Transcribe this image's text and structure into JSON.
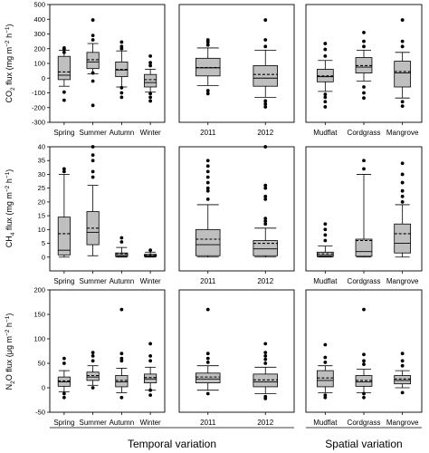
{
  "figure": {
    "row_ylabels": [
      "CO",
      "2",
      " flux (mg m",
      "−2",
      " h",
      "−1",
      ")"
    ],
    "group_labels": {
      "temporal": "Temporal variation",
      "spatial": "Spatial variation"
    }
  },
  "chart_data": [
    {
      "type": "box",
      "id": "co2-season",
      "ylim": [
        -300,
        500
      ],
      "yticks": [
        -300,
        -200,
        -100,
        0,
        100,
        200,
        300,
        400,
        500
      ],
      "categories": [
        "Spring",
        "Summer",
        "Autumn",
        "Winter"
      ],
      "boxes": [
        {
          "q1": -10,
          "median": 20,
          "mean": 42,
          "q3": 148,
          "whisker_low": -55,
          "whisker_high": 190,
          "outliers": [
            -150,
            -95,
            175,
            195,
            205
          ]
        },
        {
          "q1": 65,
          "median": 110,
          "mean": 125,
          "q3": 175,
          "whisker_low": 30,
          "whisker_high": 235,
          "outliers": [
            -185,
            -20,
            35,
            260,
            290,
            395
          ]
        },
        {
          "q1": 10,
          "median": 55,
          "mean": 60,
          "q3": 110,
          "whisker_low": -60,
          "whisker_high": 185,
          "outliers": [
            -130,
            -100,
            -65,
            200,
            215,
            245
          ]
        },
        {
          "q1": -60,
          "median": -30,
          "mean": -10,
          "q3": 25,
          "whisker_low": -95,
          "whisker_high": 60,
          "outliers": [
            -155,
            -130,
            -105,
            85,
            105,
            150
          ]
        }
      ]
    },
    {
      "type": "box",
      "id": "co2-year",
      "ylim": [
        -300,
        500
      ],
      "yticks": [
        -300,
        -200,
        -100,
        0,
        100,
        200,
        300,
        400,
        500
      ],
      "categories": [
        "2011",
        "2012"
      ],
      "boxes": [
        {
          "q1": 15,
          "median": 70,
          "mean": 72,
          "q3": 135,
          "whisker_low": -50,
          "whisker_high": 205,
          "outliers": [
            -105,
            -85,
            225,
            245,
            260
          ]
        },
        {
          "q1": -55,
          "median": 0,
          "mean": 25,
          "q3": 85,
          "whisker_low": -130,
          "whisker_high": 190,
          "outliers": [
            -195,
            -175,
            -155,
            215,
            260,
            395
          ]
        }
      ]
    },
    {
      "type": "box",
      "id": "co2-site",
      "ylim": [
        -300,
        500
      ],
      "yticks": [
        -300,
        -200,
        -100,
        0,
        100,
        200,
        300,
        400,
        500
      ],
      "categories": [
        "Mudflat",
        "Cordgrass",
        "Mangrove"
      ],
      "boxes": [
        {
          "q1": -25,
          "median": 10,
          "mean": 15,
          "q3": 60,
          "whisker_low": -90,
          "whisker_high": 120,
          "outliers": [
            -195,
            -160,
            -130,
            -110,
            150,
            195,
            235
          ]
        },
        {
          "q1": 35,
          "median": 75,
          "mean": 85,
          "q3": 140,
          "whisker_low": -20,
          "whisker_high": 190,
          "outliers": [
            -135,
            -100,
            -60,
            215,
            250,
            310
          ]
        },
        {
          "q1": -60,
          "median": 35,
          "mean": 45,
          "q3": 115,
          "whisker_low": -135,
          "whisker_high": 175,
          "outliers": [
            -190,
            -160,
            215,
            250,
            395
          ]
        }
      ]
    },
    {
      "type": "box",
      "id": "ch4-season",
      "ylim": [
        -5,
        40
      ],
      "yticks": [
        0,
        5,
        10,
        15,
        20,
        25,
        30,
        35,
        40
      ],
      "categories": [
        "Spring",
        "Summer",
        "Autumn",
        "Winter"
      ],
      "boxes": [
        {
          "q1": 0.8,
          "median": 2.5,
          "mean": 8.5,
          "q3": 14.5,
          "whisker_low": 0,
          "whisker_high": 30,
          "outliers": [
            31,
            32
          ]
        },
        {
          "q1": 4.5,
          "median": 9,
          "mean": 10.5,
          "q3": 16.5,
          "whisker_low": 0.5,
          "whisker_high": 26,
          "outliers": [
            29,
            31,
            35,
            37,
            40
          ]
        },
        {
          "q1": 0.2,
          "median": 0.6,
          "mean": 1.2,
          "q3": 1.5,
          "whisker_low": 0,
          "whisker_high": 3.5,
          "outliers": [
            5.5,
            7
          ]
        },
        {
          "q1": 0.2,
          "median": 0.5,
          "mean": 0.8,
          "q3": 1,
          "whisker_low": 0,
          "whisker_high": 1.8,
          "outliers": [
            2.5
          ]
        }
      ]
    },
    {
      "type": "box",
      "id": "ch4-year",
      "ylim": [
        -5,
        40
      ],
      "yticks": [
        0,
        5,
        10,
        15,
        20,
        25,
        30,
        35,
        40
      ],
      "categories": [
        "2011",
        "2012"
      ],
      "boxes": [
        {
          "q1": 0.5,
          "median": 4.5,
          "mean": 6.5,
          "q3": 10,
          "whisker_low": 0,
          "whisker_high": 19,
          "outliers": [
            21,
            24,
            25,
            27,
            29,
            31,
            33,
            35
          ]
        },
        {
          "q1": 0.5,
          "median": 3,
          "mean": 5,
          "q3": 6,
          "whisker_low": 0,
          "whisker_high": 10.5,
          "outliers": [
            12,
            13,
            14,
            21,
            22,
            25,
            26,
            40
          ]
        }
      ]
    },
    {
      "type": "box",
      "id": "ch4-site",
      "ylim": [
        -5,
        40
      ],
      "yticks": [
        0,
        5,
        10,
        15,
        20,
        25,
        30,
        35,
        40
      ],
      "categories": [
        "Mudflat",
        "Cordgrass",
        "Mangrove"
      ],
      "boxes": [
        {
          "q1": 0.2,
          "median": 0.6,
          "mean": 1.2,
          "q3": 1.8,
          "whisker_low": 0,
          "whisker_high": 4,
          "outliers": [
            6,
            8,
            10,
            12
          ]
        },
        {
          "q1": 0.3,
          "median": 2,
          "mean": 6,
          "q3": 6.5,
          "whisker_low": 0,
          "whisker_high": 30,
          "outliers": [
            32,
            35
          ]
        },
        {
          "q1": 1.5,
          "median": 5,
          "mean": 8.5,
          "q3": 12,
          "whisker_low": 0,
          "whisker_high": 19,
          "outliers": [
            20,
            22,
            24,
            27,
            30,
            34
          ]
        }
      ]
    },
    {
      "type": "box",
      "id": "n2o-season",
      "ylim": [
        -50,
        200
      ],
      "yticks": [
        -50,
        0,
        50,
        100,
        150,
        200
      ],
      "categories": [
        "Spring",
        "Summer",
        "Autumn",
        "Winter"
      ],
      "boxes": [
        {
          "q1": 3,
          "median": 12,
          "mean": 14,
          "q3": 22,
          "whisker_low": -8,
          "whisker_high": 35,
          "outliers": [
            -20,
            -12,
            50,
            60
          ]
        },
        {
          "q1": 15,
          "median": 22,
          "mean": 25,
          "q3": 32,
          "whisker_low": 5,
          "whisker_high": 45,
          "outliers": [
            0,
            55,
            65,
            72
          ]
        },
        {
          "q1": 2,
          "median": 12,
          "mean": 15,
          "q3": 25,
          "whisker_low": -10,
          "whisker_high": 40,
          "outliers": [
            -20,
            55,
            60,
            70,
            160
          ]
        },
        {
          "q1": 10,
          "median": 18,
          "mean": 21,
          "q3": 28,
          "whisker_low": -5,
          "whisker_high": 42,
          "outliers": [
            -15,
            -5,
            55,
            65,
            90
          ]
        }
      ]
    },
    {
      "type": "box",
      "id": "n2o-year",
      "ylim": [
        -50,
        200
      ],
      "yticks": [
        -50,
        0,
        50,
        100,
        150,
        200
      ],
      "categories": [
        "2011",
        "2012"
      ],
      "boxes": [
        {
          "q1": 10,
          "median": 18,
          "mean": 22,
          "q3": 30,
          "whisker_low": -5,
          "whisker_high": 45,
          "outliers": [
            -12,
            52,
            60,
            70,
            160
          ]
        },
        {
          "q1": 2,
          "median": 12,
          "mean": 16,
          "q3": 28,
          "whisker_low": -12,
          "whisker_high": 42,
          "outliers": [
            -22,
            -18,
            50,
            58,
            65,
            72,
            90
          ]
        }
      ]
    },
    {
      "type": "box",
      "id": "n2o-site",
      "ylim": [
        -50,
        200
      ],
      "yticks": [
        -50,
        0,
        50,
        100,
        150,
        200
      ],
      "categories": [
        "Mudflat",
        "Cordgrass",
        "Mangrove"
      ],
      "boxes": [
        {
          "q1": 2,
          "median": 15,
          "mean": 20,
          "q3": 35,
          "whisker_low": -10,
          "whisker_high": 45,
          "outliers": [
            -20,
            -15,
            52,
            62,
            88
          ]
        },
        {
          "q1": 3,
          "median": 12,
          "mean": 15,
          "q3": 25,
          "whisker_low": -10,
          "whisker_high": 38,
          "outliers": [
            -20,
            -12,
            48,
            55,
            68,
            160
          ]
        },
        {
          "q1": 8,
          "median": 15,
          "mean": 18,
          "q3": 25,
          "whisker_low": 0,
          "whisker_high": 35,
          "outliers": [
            -10,
            45,
            55,
            70
          ]
        }
      ]
    }
  ]
}
